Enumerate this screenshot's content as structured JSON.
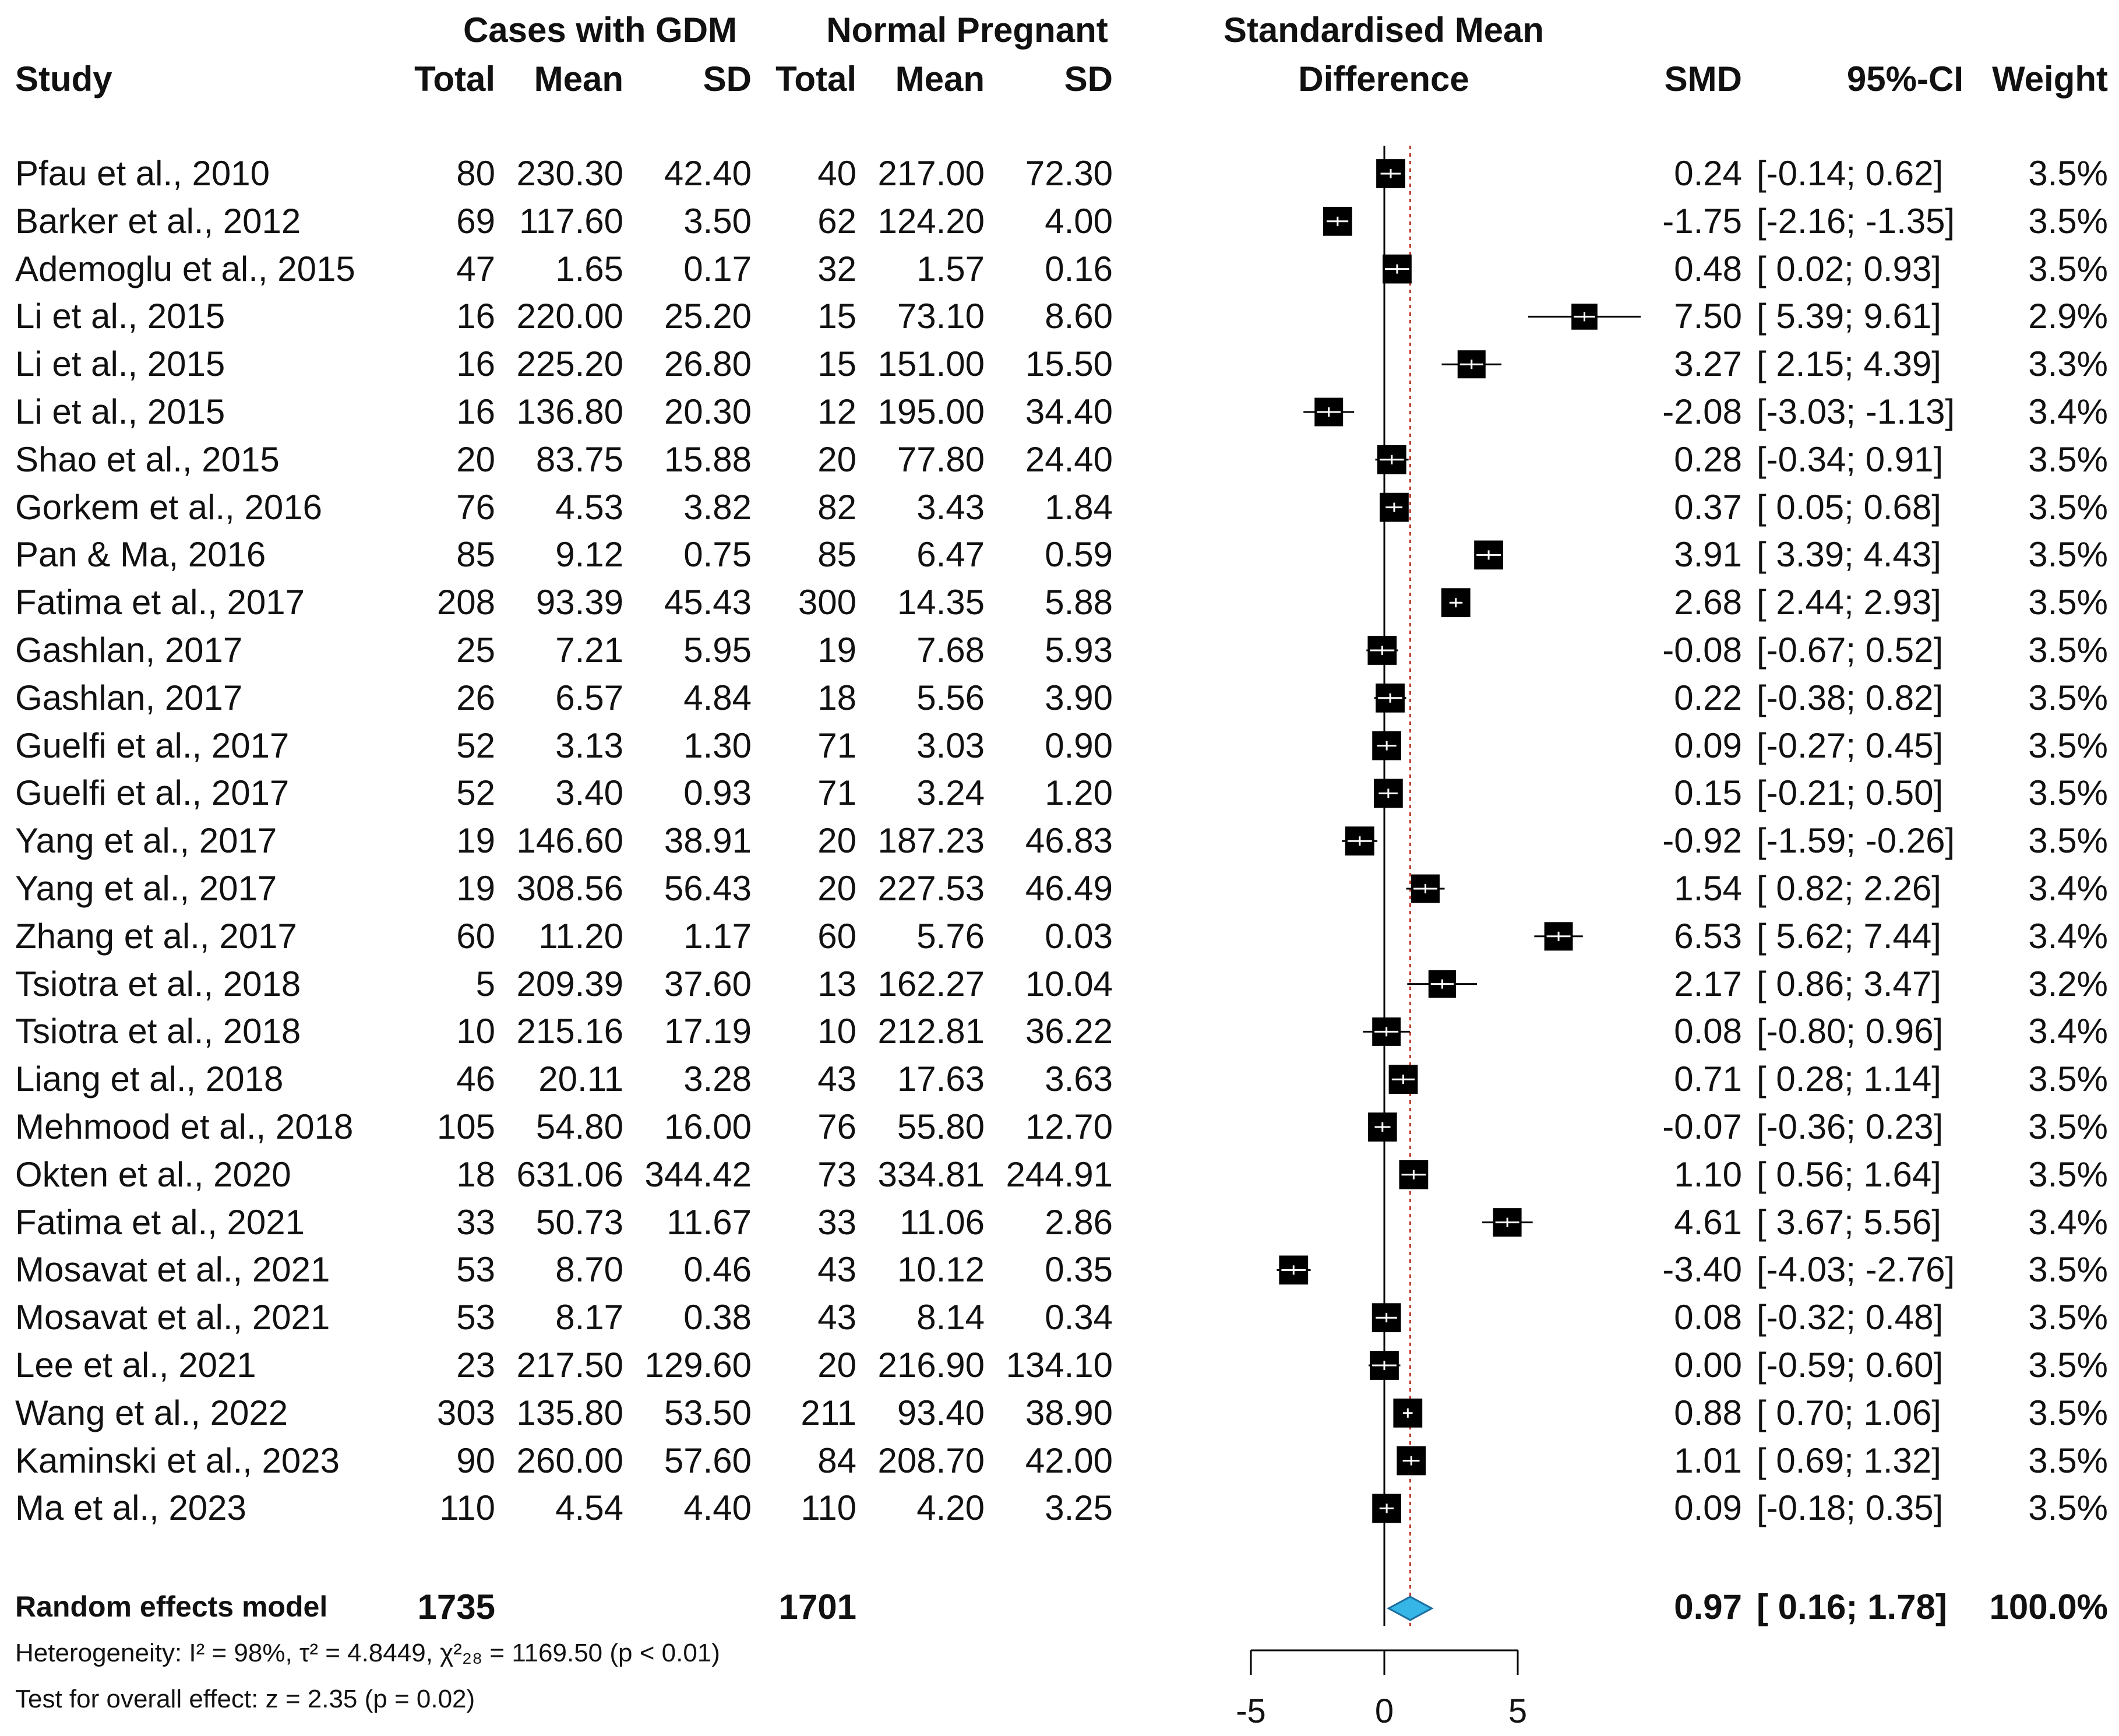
{
  "header": {
    "group1": "Cases with GDM",
    "group2": "Normal Pregnant",
    "plot_title_line1": "Standardised Mean",
    "plot_title_line2": "Difference",
    "col_study": "Study",
    "col_total1": "Total",
    "col_mean1": "Mean",
    "col_sd1": "SD",
    "col_total2": "Total",
    "col_mean2": "Mean",
    "col_sd2": "SD",
    "col_smd": "SMD",
    "col_ci": "95%-CI",
    "col_weight": "Weight"
  },
  "studies": [
    {
      "study": "Pfau et al., 2010",
      "total1": "80",
      "mean1": "230.30",
      "sd1": "42.40",
      "total2": "40",
      "mean2": "217.00",
      "sd2": "72.30",
      "smd": "0.24",
      "ci": "[-0.14; 0.62]",
      "weight": "3.5%"
    },
    {
      "study": "Barker et al., 2012",
      "total1": "69",
      "mean1": "117.60",
      "sd1": "3.50",
      "total2": "62",
      "mean2": "124.20",
      "sd2": "4.00",
      "smd": "-1.75",
      "ci": "[-2.16; -1.35]",
      "weight": "3.5%"
    },
    {
      "study": "Ademoglu et al., 2015",
      "total1": "47",
      "mean1": "1.65",
      "sd1": "0.17",
      "total2": "32",
      "mean2": "1.57",
      "sd2": "0.16",
      "smd": "0.48",
      "ci": "[ 0.02; 0.93]",
      "weight": "3.5%"
    },
    {
      "study": "Li et al., 2015",
      "total1": "16",
      "mean1": "220.00",
      "sd1": "25.20",
      "total2": "15",
      "mean2": "73.10",
      "sd2": "8.60",
      "smd": "7.50",
      "ci": "[ 5.39; 9.61]",
      "weight": "2.9%"
    },
    {
      "study": "Li et al., 2015",
      "total1": "16",
      "mean1": "225.20",
      "sd1": "26.80",
      "total2": "15",
      "mean2": "151.00",
      "sd2": "15.50",
      "smd": "3.27",
      "ci": "[ 2.15; 4.39]",
      "weight": "3.3%"
    },
    {
      "study": "Li et al., 2015",
      "total1": "16",
      "mean1": "136.80",
      "sd1": "20.30",
      "total2": "12",
      "mean2": "195.00",
      "sd2": "34.40",
      "smd": "-2.08",
      "ci": "[-3.03; -1.13]",
      "weight": "3.4%"
    },
    {
      "study": "Shao et al., 2015",
      "total1": "20",
      "mean1": "83.75",
      "sd1": "15.88",
      "total2": "20",
      "mean2": "77.80",
      "sd2": "24.40",
      "smd": "0.28",
      "ci": "[-0.34; 0.91]",
      "weight": "3.5%"
    },
    {
      "study": "Gorkem et al., 2016",
      "total1": "76",
      "mean1": "4.53",
      "sd1": "3.82",
      "total2": "82",
      "mean2": "3.43",
      "sd2": "1.84",
      "smd": "0.37",
      "ci": "[ 0.05; 0.68]",
      "weight": "3.5%"
    },
    {
      "study": "Pan & Ma, 2016",
      "total1": "85",
      "mean1": "9.12",
      "sd1": "0.75",
      "total2": "85",
      "mean2": "6.47",
      "sd2": "0.59",
      "smd": "3.91",
      "ci": "[ 3.39; 4.43]",
      "weight": "3.5%"
    },
    {
      "study": "Fatima et al., 2017",
      "total1": "208",
      "mean1": "93.39",
      "sd1": "45.43",
      "total2": "300",
      "mean2": "14.35",
      "sd2": "5.88",
      "smd": "2.68",
      "ci": "[ 2.44; 2.93]",
      "weight": "3.5%"
    },
    {
      "study": "Gashlan, 2017",
      "total1": "25",
      "mean1": "7.21",
      "sd1": "5.95",
      "total2": "19",
      "mean2": "7.68",
      "sd2": "5.93",
      "smd": "-0.08",
      "ci": "[-0.67; 0.52]",
      "weight": "3.5%"
    },
    {
      "study": "Gashlan, 2017",
      "total1": "26",
      "mean1": "6.57",
      "sd1": "4.84",
      "total2": "18",
      "mean2": "5.56",
      "sd2": "3.90",
      "smd": "0.22",
      "ci": "[-0.38; 0.82]",
      "weight": "3.5%"
    },
    {
      "study": "Guelfi et al., 2017",
      "total1": "52",
      "mean1": "3.13",
      "sd1": "1.30",
      "total2": "71",
      "mean2": "3.03",
      "sd2": "0.90",
      "smd": "0.09",
      "ci": "[-0.27; 0.45]",
      "weight": "3.5%"
    },
    {
      "study": "Guelfi et al., 2017",
      "total1": "52",
      "mean1": "3.40",
      "sd1": "0.93",
      "total2": "71",
      "mean2": "3.24",
      "sd2": "1.20",
      "smd": "0.15",
      "ci": "[-0.21; 0.50]",
      "weight": "3.5%"
    },
    {
      "study": "Yang et al., 2017",
      "total1": "19",
      "mean1": "146.60",
      "sd1": "38.91",
      "total2": "20",
      "mean2": "187.23",
      "sd2": "46.83",
      "smd": "-0.92",
      "ci": "[-1.59; -0.26]",
      "weight": "3.5%"
    },
    {
      "study": "Yang et al., 2017",
      "total1": "19",
      "mean1": "308.56",
      "sd1": "56.43",
      "total2": "20",
      "mean2": "227.53",
      "sd2": "46.49",
      "smd": "1.54",
      "ci": "[ 0.82; 2.26]",
      "weight": "3.4%"
    },
    {
      "study": "Zhang et al., 2017",
      "total1": "60",
      "mean1": "11.20",
      "sd1": "1.17",
      "total2": "60",
      "mean2": "5.76",
      "sd2": "0.03",
      "smd": "6.53",
      "ci": "[ 5.62; 7.44]",
      "weight": "3.4%"
    },
    {
      "study": "Tsiotra et al., 2018",
      "total1": "5",
      "mean1": "209.39",
      "sd1": "37.60",
      "total2": "13",
      "mean2": "162.27",
      "sd2": "10.04",
      "smd": "2.17",
      "ci": "[ 0.86; 3.47]",
      "weight": "3.2%"
    },
    {
      "study": "Tsiotra et al., 2018",
      "total1": "10",
      "mean1": "215.16",
      "sd1": "17.19",
      "total2": "10",
      "mean2": "212.81",
      "sd2": "36.22",
      "smd": "0.08",
      "ci": "[-0.80; 0.96]",
      "weight": "3.4%"
    },
    {
      "study": "Liang et al., 2018",
      "total1": "46",
      "mean1": "20.11",
      "sd1": "3.28",
      "total2": "43",
      "mean2": "17.63",
      "sd2": "3.63",
      "smd": "0.71",
      "ci": "[ 0.28; 1.14]",
      "weight": "3.5%"
    },
    {
      "study": "Mehmood et al., 2018",
      "total1": "105",
      "mean1": "54.80",
      "sd1": "16.00",
      "total2": "76",
      "mean2": "55.80",
      "sd2": "12.70",
      "smd": "-0.07",
      "ci": "[-0.36; 0.23]",
      "weight": "3.5%"
    },
    {
      "study": "Okten et al., 2020",
      "total1": "18",
      "mean1": "631.06",
      "sd1": "344.42",
      "total2": "73",
      "mean2": "334.81",
      "sd2": "244.91",
      "smd": "1.10",
      "ci": "[ 0.56; 1.64]",
      "weight": "3.5%"
    },
    {
      "study": "Fatima et al., 2021",
      "total1": "33",
      "mean1": "50.73",
      "sd1": "11.67",
      "total2": "33",
      "mean2": "11.06",
      "sd2": "2.86",
      "smd": "4.61",
      "ci": "[ 3.67; 5.56]",
      "weight": "3.4%"
    },
    {
      "study": "Mosavat et al., 2021",
      "total1": "53",
      "mean1": "8.70",
      "sd1": "0.46",
      "total2": "43",
      "mean2": "10.12",
      "sd2": "0.35",
      "smd": "-3.40",
      "ci": "[-4.03; -2.76]",
      "weight": "3.5%"
    },
    {
      "study": "Mosavat et al., 2021",
      "total1": "53",
      "mean1": "8.17",
      "sd1": "0.38",
      "total2": "43",
      "mean2": "8.14",
      "sd2": "0.34",
      "smd": "0.08",
      "ci": "[-0.32; 0.48]",
      "weight": "3.5%"
    },
    {
      "study": "Lee et al., 2021",
      "total1": "23",
      "mean1": "217.50",
      "sd1": "129.60",
      "total2": "20",
      "mean2": "216.90",
      "sd2": "134.10",
      "smd": "0.00",
      "ci": "[-0.59; 0.60]",
      "weight": "3.5%"
    },
    {
      "study": "Wang et al., 2022",
      "total1": "303",
      "mean1": "135.80",
      "sd1": "53.50",
      "total2": "211",
      "mean2": "93.40",
      "sd2": "38.90",
      "smd": "0.88",
      "ci": "[ 0.70; 1.06]",
      "weight": "3.5%"
    },
    {
      "study": "Kaminski et al., 2023",
      "total1": "90",
      "mean1": "260.00",
      "sd1": "57.60",
      "total2": "84",
      "mean2": "208.70",
      "sd2": "42.00",
      "smd": "1.01",
      "ci": "[ 0.69; 1.32]",
      "weight": "3.5%"
    },
    {
      "study": "Ma et al., 2023",
      "total1": "110",
      "mean1": "4.54",
      "sd1": "4.40",
      "total2": "110",
      "mean2": "4.20",
      "sd2": "3.25",
      "smd": "0.09",
      "ci": "[-0.18; 0.35]",
      "weight": "3.5%"
    }
  ],
  "summary": {
    "label": "Random effects model",
    "total1": "1735",
    "total2": "1701",
    "smd": "0.97",
    "ci": "[ 0.16; 1.78]",
    "weight": "100.0%"
  },
  "footer": {
    "heterogeneity": "Heterogeneity: I² = 98%, τ² = 4.8449, χ²₂₈ = 1169.50 (p < 0.01)",
    "overall": "Test for overall effect: z = 2.35 (p = 0.02)"
  },
  "colors": {
    "diamond": "#35b6e6",
    "ref_line": "#c0392b",
    "marker": "#000000"
  },
  "chart_data": {
    "type": "forest",
    "title": "Standardised Mean Difference",
    "measure": "SMD",
    "model": "Random effects model",
    "xlim": [
      -5,
      5
    ],
    "xticks": [
      -5,
      0,
      5
    ],
    "null_value": 0,
    "pooled": {
      "estimate": 0.97,
      "lower": 0.16,
      "upper": 1.78
    },
    "estimates": [
      0.24,
      -1.75,
      0.48,
      7.5,
      3.27,
      -2.08,
      0.28,
      0.37,
      3.91,
      2.68,
      -0.08,
      0.22,
      0.09,
      0.15,
      -0.92,
      1.54,
      6.53,
      2.17,
      0.08,
      0.71,
      -0.07,
      1.1,
      4.61,
      -3.4,
      0.08,
      0.0,
      0.88,
      1.01,
      0.09
    ],
    "lower": [
      -0.14,
      -2.16,
      0.02,
      5.39,
      2.15,
      -3.03,
      -0.34,
      0.05,
      3.39,
      2.44,
      -0.67,
      -0.38,
      -0.27,
      -0.21,
      -1.59,
      0.82,
      5.62,
      0.86,
      -0.8,
      0.28,
      -0.36,
      0.56,
      3.67,
      -4.03,
      -0.32,
      -0.59,
      0.7,
      0.69,
      -0.18
    ],
    "upper": [
      0.62,
      -1.35,
      0.93,
      9.61,
      4.39,
      -1.13,
      0.91,
      0.68,
      4.43,
      2.93,
      0.52,
      0.82,
      0.45,
      0.5,
      -0.26,
      2.26,
      7.44,
      3.47,
      0.96,
      1.14,
      0.23,
      1.64,
      5.56,
      -2.76,
      0.48,
      0.6,
      1.06,
      1.32,
      0.35
    ],
    "weights": [
      3.5,
      3.5,
      3.5,
      2.9,
      3.3,
      3.4,
      3.5,
      3.5,
      3.5,
      3.5,
      3.5,
      3.5,
      3.5,
      3.5,
      3.5,
      3.4,
      3.4,
      3.2,
      3.4,
      3.5,
      3.5,
      3.5,
      3.4,
      3.5,
      3.5,
      3.5,
      3.5,
      3.5,
      3.5
    ]
  }
}
